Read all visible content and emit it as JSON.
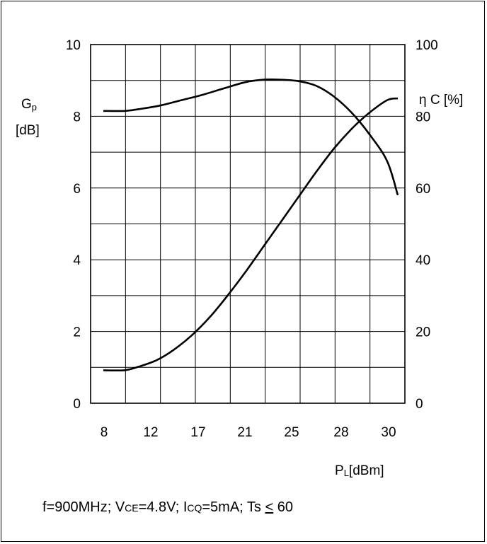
{
  "chart_data": {
    "type": "line",
    "x_axis": {
      "tick_labels": [
        "8",
        "12",
        "17",
        "21",
        "25",
        "28",
        "30"
      ],
      "label_main": "P",
      "label_sub": "L",
      "label_unit": "[dBm]"
    },
    "y_axis_left": {
      "label_main": "G",
      "label_sub": "p",
      "label_unit": "[dB]",
      "range": [
        0,
        10
      ],
      "ticks": [
        0,
        2,
        4,
        6,
        8,
        10
      ]
    },
    "y_axis_right": {
      "label": "η C [%]",
      "range": [
        0,
        100
      ],
      "ticks": [
        0,
        20,
        40,
        60,
        80,
        100
      ]
    },
    "grid": true,
    "series": [
      {
        "axis": "left",
        "color": "#000000",
        "points": [
          [
            0.0,
            8.15
          ],
          [
            0.6,
            8.15
          ],
          [
            1.0,
            8.2
          ],
          [
            1.6,
            8.3
          ],
          [
            2.2,
            8.45
          ],
          [
            2.8,
            8.6
          ],
          [
            3.4,
            8.78
          ],
          [
            4.0,
            8.95
          ],
          [
            4.5,
            9.02
          ],
          [
            5.0,
            9.02
          ],
          [
            5.5,
            8.98
          ],
          [
            6.0,
            8.85
          ],
          [
            6.5,
            8.55
          ],
          [
            7.0,
            8.1
          ],
          [
            7.5,
            7.5
          ],
          [
            8.0,
            6.75
          ],
          [
            8.3,
            5.8
          ]
        ]
      },
      {
        "axis": "right",
        "color": "#000000",
        "points": [
          [
            0.0,
            9.2
          ],
          [
            0.6,
            9.2
          ],
          [
            1.0,
            10.2
          ],
          [
            1.5,
            12.0
          ],
          [
            2.0,
            15.0
          ],
          [
            2.5,
            19.0
          ],
          [
            3.0,
            24.0
          ],
          [
            3.5,
            30.0
          ],
          [
            4.0,
            36.5
          ],
          [
            4.5,
            43.5
          ],
          [
            5.0,
            50.5
          ],
          [
            5.5,
            57.5
          ],
          [
            6.0,
            64.5
          ],
          [
            6.5,
            71.0
          ],
          [
            7.0,
            76.5
          ],
          [
            7.5,
            81.0
          ],
          [
            8.0,
            84.5
          ],
          [
            8.3,
            85.0
          ]
        ]
      }
    ]
  },
  "caption": {
    "p1": "f=900MHz; V",
    "p1_sub": "CE",
    "p2": "=4.8V; I",
    "p2_sub": "CQ",
    "p3": "=5mA; Ts ",
    "le": "<",
    "p4": " 60"
  }
}
